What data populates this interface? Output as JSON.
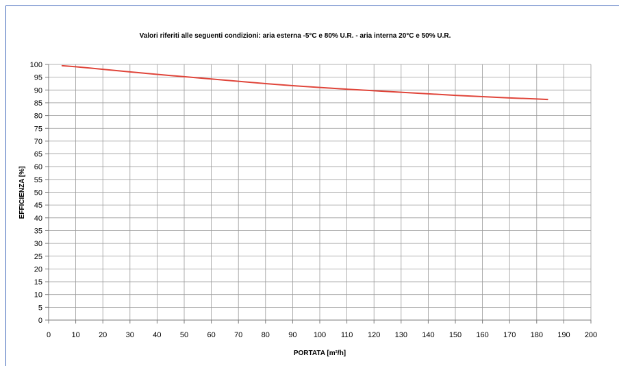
{
  "chart_data": {
    "type": "line",
    "title": "Valori riferiti alle seguenti condizioni: aria esterna -5°C e 80% U.R.  -  aria interna 20°C e 50% U.R.",
    "xlabel": "PORTATA [m²/h]",
    "ylabel": "EFFICIENZA [%]",
    "xlim": [
      0,
      200
    ],
    "ylim": [
      0,
      100
    ],
    "x_step": 10,
    "y_step": 5,
    "grid": true,
    "legend": "none",
    "series": [
      {
        "color": "#e0453a",
        "x": [
          5,
          10,
          20,
          30,
          40,
          50,
          60,
          70,
          80,
          90,
          100,
          110,
          120,
          130,
          140,
          150,
          160,
          170,
          180,
          184
        ],
        "y": [
          99.5,
          99.1,
          98.1,
          97.1,
          96.1,
          95.2,
          94.3,
          93.4,
          92.5,
          91.7,
          91.0,
          90.3,
          89.7,
          89.1,
          88.5,
          87.9,
          87.4,
          86.9,
          86.5,
          86.3
        ]
      }
    ],
    "colors": {
      "grid": "#9a9a9a",
      "axis": "#7a7a7a",
      "frame": "#3a63b8"
    }
  }
}
